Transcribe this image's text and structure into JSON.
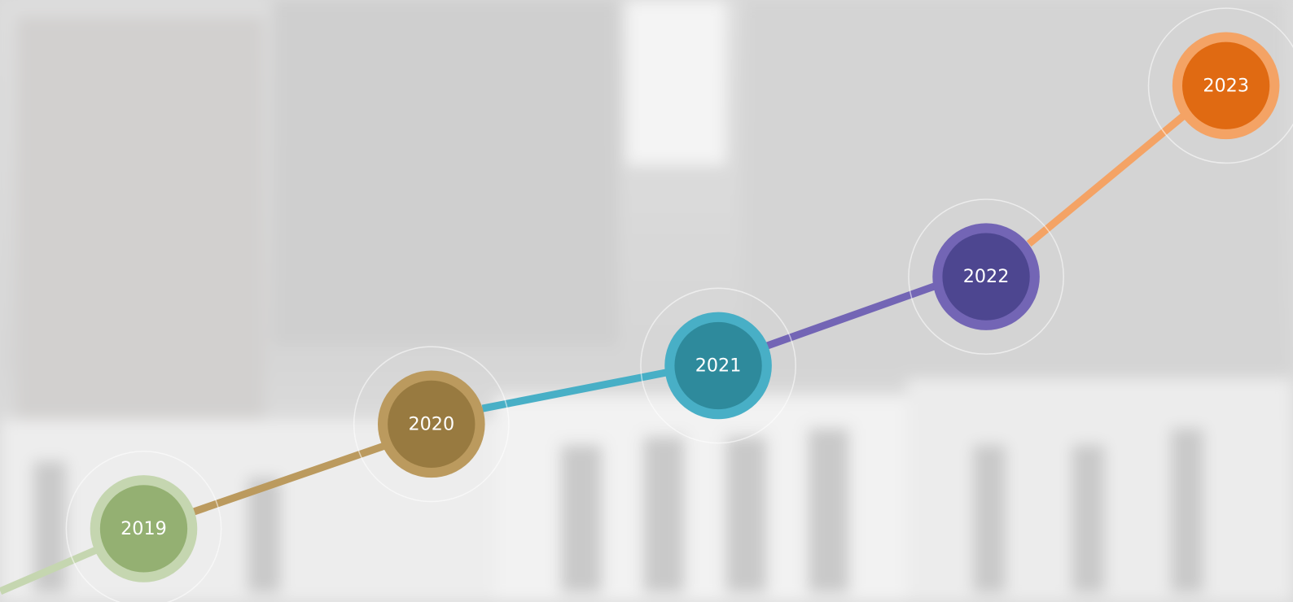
{
  "nodes": [
    {
      "label": "2019"
    },
    {
      "label": "2020"
    },
    {
      "label": "2021"
    },
    {
      "label": "2022"
    },
    {
      "label": "2023"
    }
  ]
}
